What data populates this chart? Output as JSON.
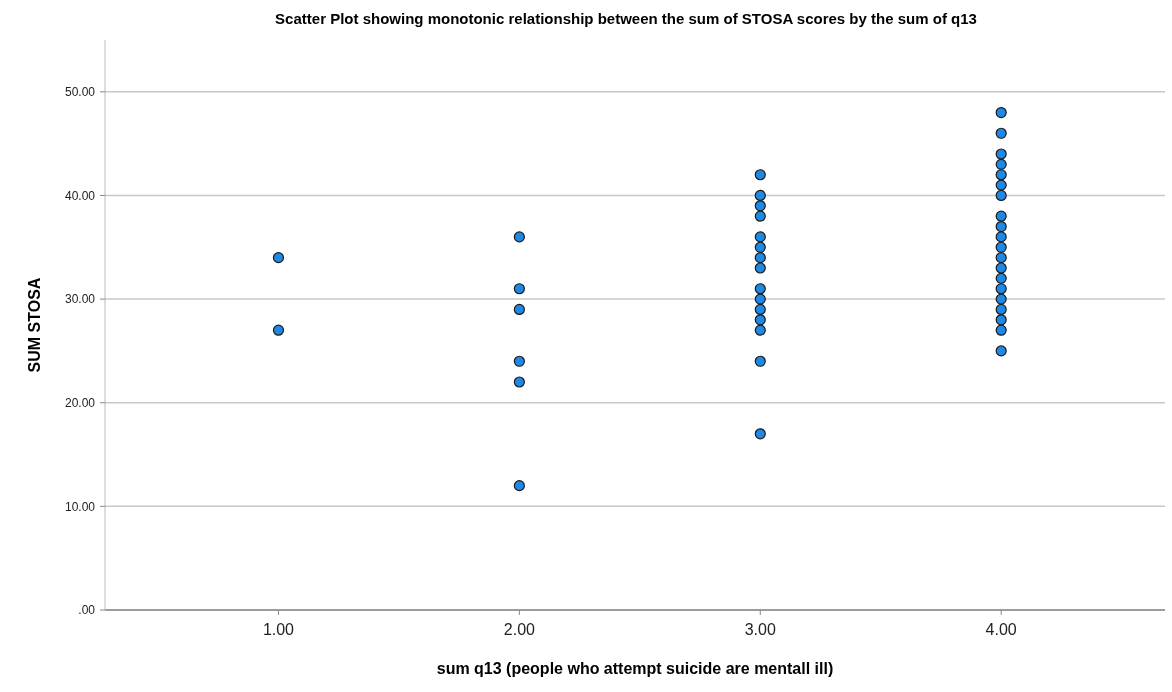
{
  "chart_data": {
    "type": "scatter",
    "title": "Scatter Plot showing monotonic relationship between the sum of STOSA scores by the sum of q13",
    "xlabel": "sum q13 (people who attempt suicide are mentall ill)",
    "ylabel": "SUM STOSA",
    "series": [
      {
        "color": "#1e88e5",
        "x": [
          1,
          1,
          2,
          2,
          2,
          2,
          2,
          2,
          3,
          3,
          3,
          3,
          3,
          3,
          3,
          3,
          3,
          3,
          3,
          3,
          3,
          3,
          3,
          4,
          4,
          4,
          4,
          4,
          4,
          4,
          4,
          4,
          4,
          4,
          4,
          4,
          4,
          4,
          4,
          4,
          4,
          4,
          4
        ],
        "values": [
          34,
          27,
          36,
          31,
          29,
          24,
          22,
          12,
          42,
          40,
          39,
          38,
          36,
          35,
          34,
          33,
          31,
          30,
          29,
          28,
          27,
          24,
          17,
          48,
          46,
          44,
          43,
          42,
          41,
          40,
          38,
          37,
          36,
          35,
          34,
          33,
          32,
          31,
          30,
          29,
          28,
          27,
          25
        ]
      }
    ],
    "xlim": [
      0.28,
      4.68
    ],
    "xticks": [
      {
        "value": 1,
        "label": "1.00"
      },
      {
        "value": 2,
        "label": "2.00"
      },
      {
        "value": 3,
        "label": "3.00"
      },
      {
        "value": 4,
        "label": "4.00"
      }
    ],
    "ylim": [
      0,
      55
    ],
    "yticks": [
      {
        "value": 0,
        "label": ".00"
      },
      {
        "value": 10,
        "label": "10.00"
      },
      {
        "value": 20,
        "label": "20.00"
      },
      {
        "value": 30,
        "label": "30.00"
      },
      {
        "value": 40,
        "label": "40.00"
      },
      {
        "value": 50,
        "label": "50.00"
      }
    ],
    "grid": "y",
    "marker": "circle"
  }
}
